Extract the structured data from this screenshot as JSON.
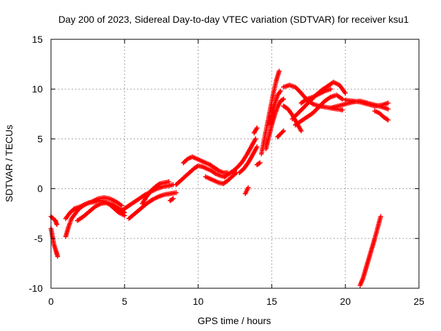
{
  "chart_data": {
    "type": "scatter",
    "title": "Day 200 of 2023, Sidereal Day-to-day VTEC variation (SDTVAR) for receiver ksu1",
    "xlabel": "GPS time / hours",
    "ylabel": "SDTVAR / TECUs",
    "xlim": [
      0,
      25
    ],
    "ylim": [
      -10,
      15
    ],
    "xticks": [
      0,
      5,
      10,
      15,
      20,
      25
    ],
    "yticks": [
      -10,
      -5,
      0,
      5,
      10,
      15
    ],
    "xtick_labels": [
      "0",
      "5",
      "10",
      "15",
      "20",
      "25"
    ],
    "ytick_labels": [
      "-10",
      "-5",
      "0",
      "5",
      "10",
      "15"
    ],
    "grid": true,
    "marker": "+",
    "color": "#ff0000",
    "series": [
      {
        "name": "arc-1",
        "x": [
          0.0,
          0.15,
          0.3,
          0.4
        ],
        "y": [
          -2.8,
          -3.0,
          -3.2,
          -3.6
        ]
      },
      {
        "name": "arc-2",
        "x": [
          0.0,
          0.1,
          0.2,
          0.35,
          0.45
        ],
        "y": [
          -4.0,
          -4.8,
          -5.6,
          -6.3,
          -6.8
        ]
      },
      {
        "name": "arc-3",
        "x": [
          1.0,
          1.2,
          1.4,
          1.6,
          1.8,
          2.0,
          2.3,
          2.6,
          3.0,
          3.3,
          3.6,
          4.0,
          4.3,
          4.6,
          5.0
        ],
        "y": [
          -4.8,
          -3.8,
          -3.0,
          -2.6,
          -2.2,
          -1.9,
          -1.6,
          -1.4,
          -1.3,
          -1.2,
          -1.3,
          -1.6,
          -2.0,
          -2.4,
          -2.7
        ]
      },
      {
        "name": "arc-4",
        "x": [
          1.0,
          1.3,
          1.6,
          2.0,
          2.4,
          2.8,
          3.2,
          3.6,
          4.0,
          4.4,
          4.8
        ],
        "y": [
          -3.0,
          -2.4,
          -2.0,
          -1.8,
          -1.5,
          -1.3,
          -1.0,
          -0.9,
          -1.0,
          -1.3,
          -1.7
        ]
      },
      {
        "name": "arc-5",
        "x": [
          1.8,
          2.2,
          2.6,
          3.0,
          3.4,
          3.8,
          4.2,
          4.6,
          5.0
        ],
        "y": [
          -3.2,
          -2.8,
          -2.3,
          -1.8,
          -1.5,
          -1.4,
          -1.6,
          -2.0,
          -2.4
        ]
      },
      {
        "name": "arc-6",
        "x": [
          4.8,
          5.2,
          5.6,
          6.0,
          6.4,
          6.8,
          7.2,
          7.6,
          8.0,
          8.3
        ],
        "y": [
          -2.2,
          -1.8,
          -1.4,
          -1.0,
          -0.6,
          -0.3,
          0.0,
          0.2,
          0.3,
          0.4
        ]
      },
      {
        "name": "arc-7",
        "x": [
          5.3,
          5.7,
          6.1,
          6.5,
          6.9,
          7.3,
          7.7,
          8.1,
          8.5
        ],
        "y": [
          -3.0,
          -2.5,
          -2.0,
          -1.5,
          -1.1,
          -0.8,
          -0.6,
          -0.5,
          -0.4
        ]
      },
      {
        "name": "arc-8",
        "x": [
          6.2,
          6.5,
          6.8,
          7.1,
          7.4,
          7.7,
          8.0
        ],
        "y": [
          -1.5,
          -0.8,
          -0.2,
          0.2,
          0.5,
          0.6,
          0.7
        ]
      },
      {
        "name": "arc-9",
        "x": [
          8.1,
          8.3
        ],
        "y": [
          -1.2,
          -1.0
        ]
      },
      {
        "name": "arc-10",
        "x": [
          8.5,
          8.8,
          9.1,
          9.4,
          9.7,
          10.0,
          10.3,
          10.6,
          10.9,
          11.2,
          11.5,
          11.8
        ],
        "y": [
          0.4,
          0.8,
          1.2,
          1.6,
          2.0,
          2.3,
          2.2,
          2.0,
          1.8,
          1.5,
          1.3,
          1.2
        ]
      },
      {
        "name": "arc-11",
        "x": [
          9.0,
          9.3,
          9.6,
          9.9,
          10.2,
          10.5,
          10.8,
          11.1,
          11.4,
          11.7,
          12.0
        ],
        "y": [
          2.6,
          3.0,
          3.2,
          3.0,
          2.8,
          2.6,
          2.4,
          2.1,
          1.8,
          1.6,
          1.6
        ]
      },
      {
        "name": "arc-12",
        "x": [
          10.5,
          10.8,
          11.1,
          11.4,
          11.7,
          12.0,
          12.3,
          12.6
        ],
        "y": [
          1.2,
          1.0,
          0.8,
          0.6,
          0.5,
          0.8,
          1.2,
          1.6
        ]
      },
      {
        "name": "arc-13",
        "x": [
          11.8,
          12.1,
          12.4,
          12.7,
          13.0,
          13.3,
          13.6,
          13.9
        ],
        "y": [
          1.2,
          1.5,
          1.8,
          2.2,
          2.7,
          3.4,
          4.2,
          5.0
        ]
      },
      {
        "name": "arc-14",
        "x": [
          12.8,
          13.1,
          13.4,
          13.7,
          14.0
        ],
        "y": [
          1.6,
          2.0,
          2.6,
          3.4,
          4.2
        ]
      },
      {
        "name": "arc-15",
        "x": [
          13.2,
          13.3,
          13.4
        ],
        "y": [
          -0.5,
          -0.2,
          0.1
        ]
      },
      {
        "name": "arc-16",
        "x": [
          13.8,
          14.0
        ],
        "y": [
          5.6,
          6.1
        ]
      },
      {
        "name": "arc-17",
        "x": [
          14.0,
          14.2
        ],
        "y": [
          2.4,
          2.6
        ]
      },
      {
        "name": "arc-18",
        "x": [
          14.3,
          14.5,
          14.7,
          14.9,
          15.1,
          15.3,
          15.5
        ],
        "y": [
          3.5,
          5.0,
          6.5,
          8.0,
          9.5,
          10.8,
          11.8
        ]
      },
      {
        "name": "arc-19",
        "x": [
          14.6,
          14.8,
          15.0,
          15.2,
          15.4,
          15.6,
          15.8
        ],
        "y": [
          4.0,
          5.2,
          6.4,
          7.4,
          8.2,
          8.8,
          9.0
        ]
      },
      {
        "name": "arc-20",
        "x": [
          14.8,
          15.0,
          15.2,
          15.4,
          15.6
        ],
        "y": [
          6.5,
          7.5,
          8.5,
          9.4,
          9.8
        ]
      },
      {
        "name": "arc-21",
        "x": [
          15.4,
          15.6,
          15.8
        ],
        "y": [
          5.2,
          5.5,
          5.8
        ]
      },
      {
        "name": "arc-22",
        "x": [
          15.8,
          16.1,
          16.4,
          16.7,
          17.0
        ],
        "y": [
          8.3,
          8.0,
          7.4,
          6.6,
          5.8
        ]
      },
      {
        "name": "arc-23",
        "x": [
          15.8,
          16.2,
          16.6,
          17.0,
          17.4,
          17.8,
          18.2,
          18.6,
          19.0,
          19.4,
          19.8
        ],
        "y": [
          10.2,
          10.4,
          10.2,
          9.6,
          8.9,
          8.5,
          8.3,
          8.2,
          8.1,
          8.0,
          7.9
        ]
      },
      {
        "name": "arc-24",
        "x": [
          16.4,
          16.8,
          17.2,
          17.6,
          18.0,
          18.4,
          18.8,
          19.2,
          19.6,
          20.0
        ],
        "y": [
          7.0,
          7.6,
          8.2,
          8.8,
          9.4,
          9.9,
          10.3,
          10.7,
          10.4,
          9.6
        ]
      },
      {
        "name": "arc-25",
        "x": [
          16.6,
          17.0,
          17.4,
          17.8,
          18.2,
          18.6,
          19.0,
          19.4,
          19.8
        ],
        "y": [
          6.4,
          6.8,
          7.2,
          7.6,
          8.2,
          8.8,
          9.2,
          9.4,
          9.0
        ]
      },
      {
        "name": "arc-26",
        "x": [
          17.0,
          17.4,
          17.8,
          18.2,
          18.6,
          19.0
        ],
        "y": [
          8.6,
          9.0,
          9.2,
          9.5,
          9.8,
          10.0
        ]
      },
      {
        "name": "arc-27",
        "x": [
          19.0,
          19.5,
          20.0,
          20.5,
          21.0,
          21.5,
          22.0,
          22.5,
          22.9
        ],
        "y": [
          8.1,
          8.3,
          8.5,
          8.7,
          8.8,
          8.6,
          8.4,
          8.2,
          8.0
        ]
      },
      {
        "name": "arc-28",
        "x": [
          20.0,
          20.5,
          21.0,
          21.5,
          22.0,
          22.5,
          22.9
        ],
        "y": [
          8.9,
          8.8,
          8.7,
          8.5,
          8.3,
          8.4,
          8.6
        ]
      },
      {
        "name": "arc-29",
        "x": [
          22.0,
          22.3,
          22.6,
          22.9
        ],
        "y": [
          7.8,
          7.6,
          7.2,
          6.9
        ]
      },
      {
        "name": "arc-30",
        "x": [
          21.0,
          21.2,
          21.4,
          21.6,
          21.8,
          22.0,
          22.2,
          22.4
        ],
        "y": [
          -9.7,
          -9.0,
          -8.0,
          -7.0,
          -6.0,
          -5.0,
          -3.9,
          -2.8
        ]
      }
    ]
  }
}
